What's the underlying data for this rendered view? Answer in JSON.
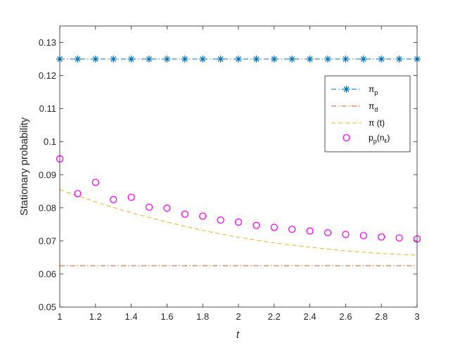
{
  "chart_data": {
    "type": "line",
    "xlabel": "t",
    "ylabel": "Stationary probability",
    "xlim": [
      1,
      3
    ],
    "ylim": [
      0.05,
      0.135
    ],
    "xticks": [
      1,
      1.2,
      1.4,
      1.6,
      1.8,
      2,
      2.2,
      2.4,
      2.6,
      2.8,
      3
    ],
    "xtick_labels": [
      "1",
      "1.2",
      "1.4",
      "1.6",
      "1.8",
      "2",
      "2.2",
      "2.4",
      "2.6",
      "2.8",
      "3"
    ],
    "yticks": [
      0.05,
      0.06,
      0.07,
      0.08,
      0.09,
      0.1,
      0.11,
      0.12,
      0.13
    ],
    "ytick_labels": [
      "0.05",
      "0.06",
      "0.07",
      "0.08",
      "0.09",
      "0.1",
      "0.11",
      "0.12",
      "0.13"
    ],
    "grid": false,
    "legend_position": "upper-right",
    "series": [
      {
        "name": "π_p",
        "label_main": "π",
        "label_sub": "p",
        "label_paren": "",
        "style": "dash-dot-asterisk",
        "color": "#0072BD",
        "x": [
          1,
          1.1,
          1.2,
          1.3,
          1.4,
          1.5,
          1.6,
          1.7,
          1.8,
          1.9,
          2,
          2.1,
          2.2,
          2.3,
          2.4,
          2.5,
          2.6,
          2.7,
          2.8,
          2.9,
          3
        ],
        "y": [
          0.125,
          0.125,
          0.125,
          0.125,
          0.125,
          0.125,
          0.125,
          0.125,
          0.125,
          0.125,
          0.125,
          0.125,
          0.125,
          0.125,
          0.125,
          0.125,
          0.125,
          0.125,
          0.125,
          0.125,
          0.125
        ]
      },
      {
        "name": "π_d",
        "label_main": "π",
        "label_sub": "d",
        "label_paren": "",
        "style": "dash-dot",
        "color": "#D95319",
        "x": [
          1,
          3
        ],
        "y": [
          0.0625,
          0.0625
        ]
      },
      {
        "name": "π (t)",
        "label_main": "π (t)",
        "label_sub": "",
        "label_paren": "",
        "style": "dashed",
        "color": "#EDB120",
        "x": [
          1,
          1.2,
          1.4,
          1.6,
          1.8,
          2,
          2.2,
          2.4,
          2.6,
          2.8,
          3
        ],
        "y": [
          0.0855,
          0.0818,
          0.0785,
          0.0757,
          0.0732,
          0.0711,
          0.0694,
          0.0681,
          0.067,
          0.0662,
          0.0657
        ]
      },
      {
        "name": "p_p(n_ε)",
        "label_main": "p",
        "label_sub": "p",
        "label_paren": "(n",
        "label_paren_sub": "ε",
        "label_close": ")",
        "style": "circle",
        "color": "#FF00FF",
        "x": [
          1,
          1.1,
          1.2,
          1.3,
          1.4,
          1.5,
          1.6,
          1.7,
          1.8,
          1.9,
          2,
          2.1,
          2.2,
          2.3,
          2.4,
          2.5,
          2.6,
          2.7,
          2.8,
          2.9,
          3
        ],
        "y": [
          0.0948,
          0.0843,
          0.0877,
          0.0825,
          0.0832,
          0.0802,
          0.0799,
          0.0781,
          0.0775,
          0.0763,
          0.0757,
          0.0747,
          0.0741,
          0.0735,
          0.073,
          0.0725,
          0.072,
          0.0716,
          0.0712,
          0.0709,
          0.0706
        ]
      }
    ]
  }
}
